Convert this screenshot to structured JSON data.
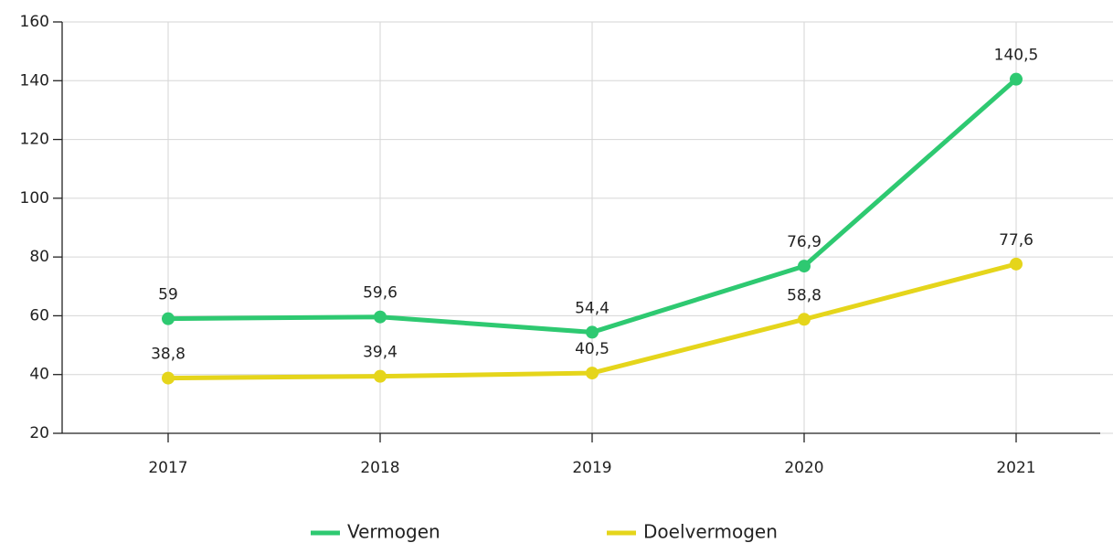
{
  "chart_data": {
    "type": "line",
    "categories": [
      "2017",
      "2018",
      "2019",
      "2020",
      "2021"
    ],
    "series": [
      {
        "name": "Vermogen",
        "color": "#2ec971",
        "values": [
          59,
          59.6,
          54.4,
          76.9,
          140.5
        ],
        "value_labels": [
          "59",
          "59,6",
          "54,4",
          "76,9",
          "140,5"
        ]
      },
      {
        "name": "Doelvermogen",
        "color": "#e5d51b",
        "values": [
          38.8,
          39.4,
          40.5,
          58.8,
          77.6
        ],
        "value_labels": [
          "38,8",
          "39,4",
          "40,5",
          "58,8",
          "77,6"
        ]
      }
    ],
    "ylim": [
      20,
      160
    ],
    "yticks": [
      20,
      40,
      60,
      80,
      100,
      120,
      140,
      160
    ],
    "grid": true
  }
}
